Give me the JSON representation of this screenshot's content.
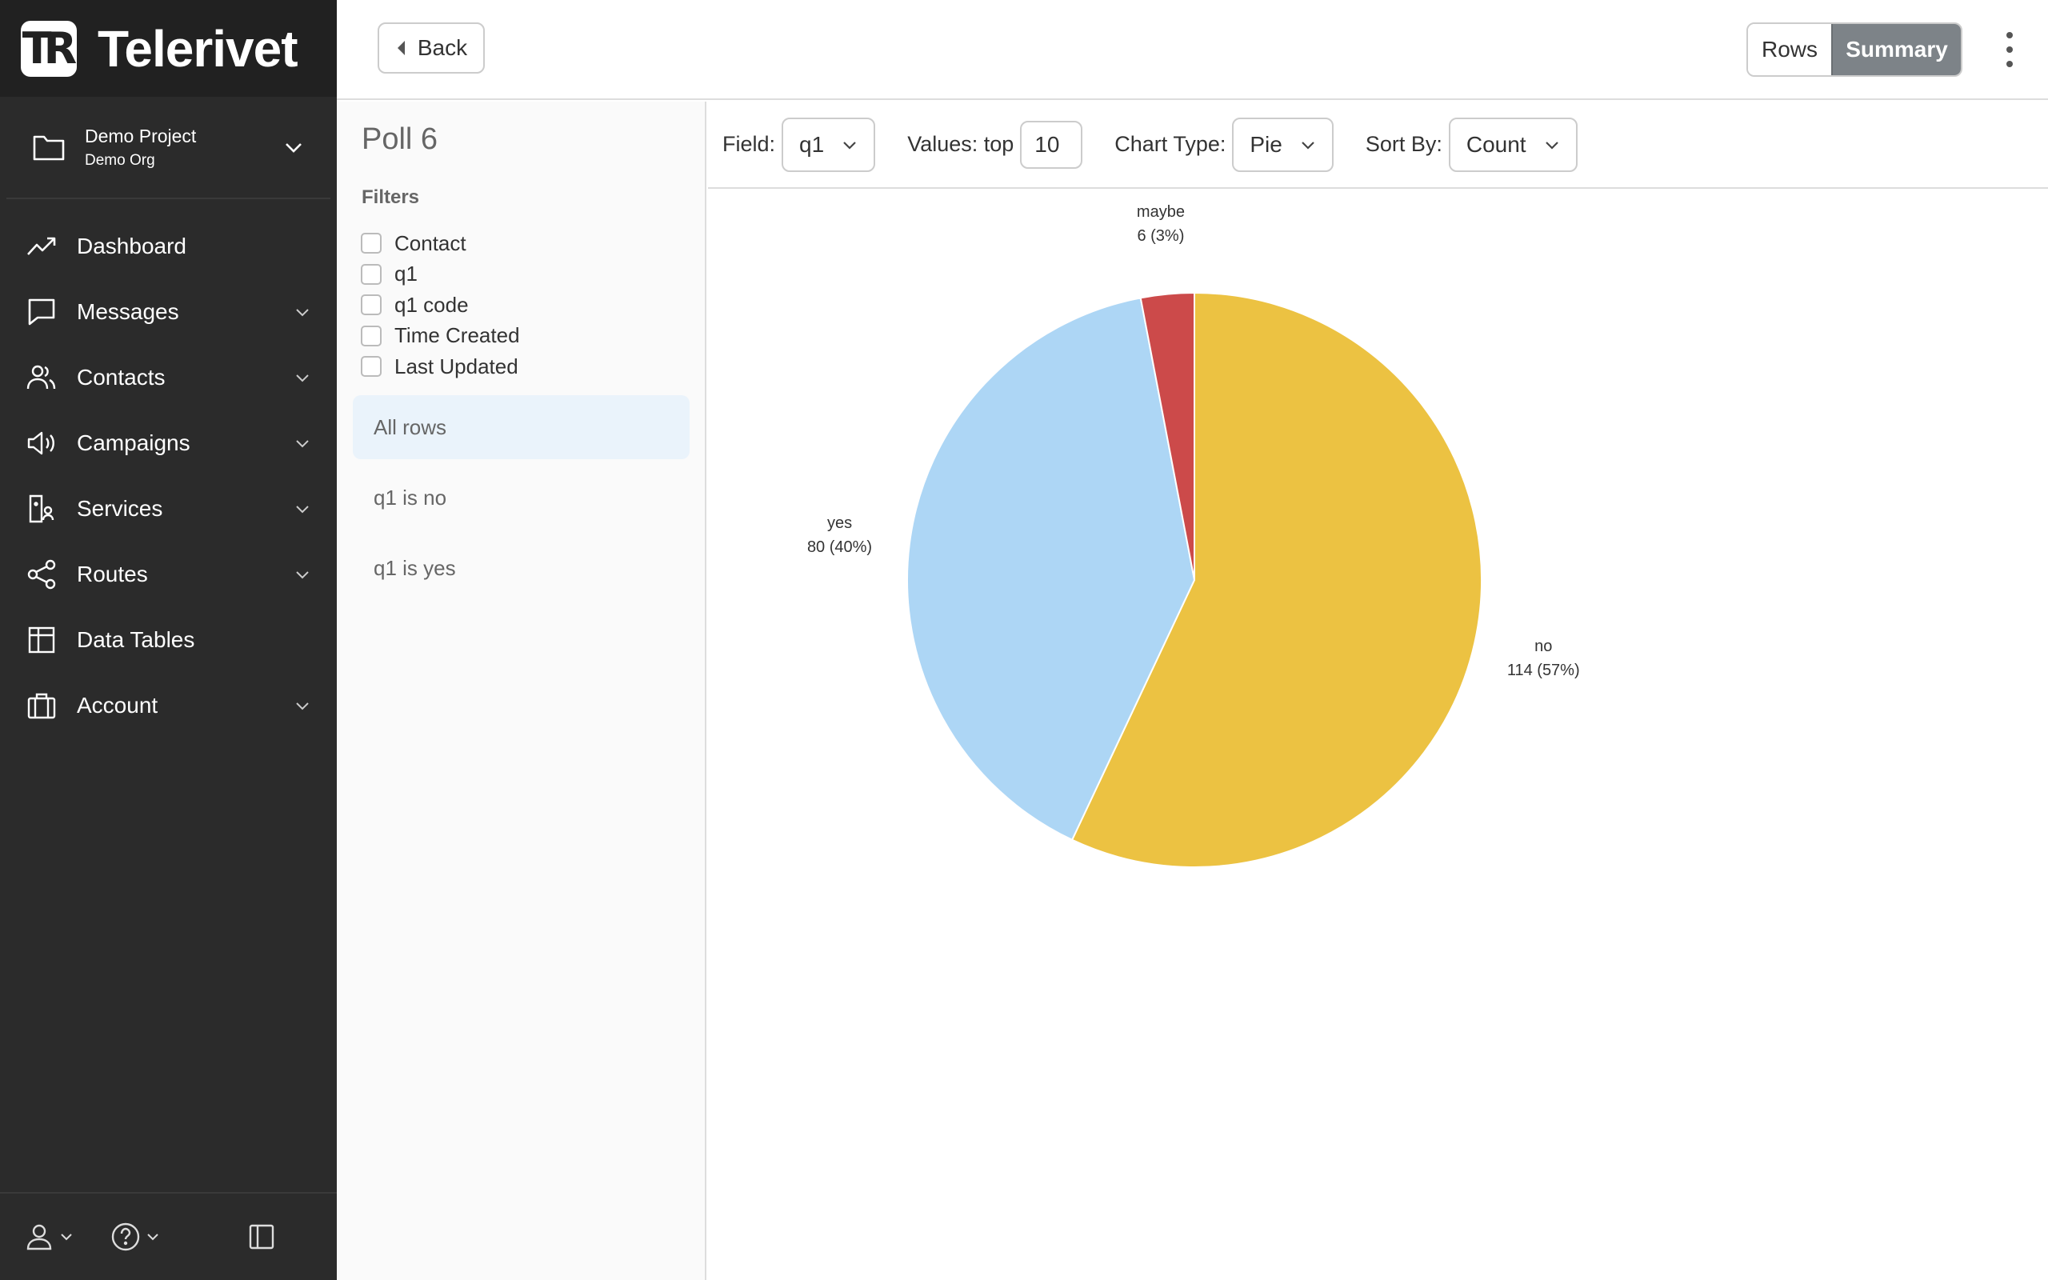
{
  "brand": {
    "name": "Telerivet",
    "logo_mark": "TR"
  },
  "project": {
    "name": "Demo Project",
    "org": "Demo Org"
  },
  "nav": [
    {
      "label": "Dashboard",
      "icon": "trending-up-icon",
      "expandable": false
    },
    {
      "label": "Messages",
      "icon": "message-icon",
      "expandable": true
    },
    {
      "label": "Contacts",
      "icon": "users-icon",
      "expandable": true
    },
    {
      "label": "Campaigns",
      "icon": "megaphone-icon",
      "expandable": true
    },
    {
      "label": "Services",
      "icon": "services-icon",
      "expandable": true
    },
    {
      "label": "Routes",
      "icon": "share-icon",
      "expandable": true
    },
    {
      "label": "Data Tables",
      "icon": "table-icon",
      "expandable": false
    },
    {
      "label": "Account",
      "icon": "briefcase-icon",
      "expandable": true
    }
  ],
  "topbar": {
    "back_label": "Back",
    "rows_label": "Rows",
    "summary_label": "Summary"
  },
  "panel": {
    "title": "Poll 6",
    "filters_heading": "Filters",
    "filter_fields": [
      "Contact",
      "q1",
      "q1 code",
      "Time Created",
      "Last Updated"
    ],
    "saved_filters": [
      "All rows",
      "q1 is no",
      "q1 is yes"
    ],
    "active_filter": "All rows"
  },
  "toolbar": {
    "field_label": "Field:",
    "field_value": "q1",
    "values_label": "Values: top",
    "values_value": "10",
    "chart_type_label": "Chart Type:",
    "chart_type_value": "Pie",
    "sort_label": "Sort By:",
    "sort_value": "Count"
  },
  "chart_data": {
    "type": "pie",
    "slices": [
      {
        "label": "no",
        "value": 114,
        "text": "114 (57%)",
        "color": "#ecc242"
      },
      {
        "label": "yes",
        "value": 80,
        "text": "80 (40%)",
        "color": "#add6f5"
      },
      {
        "label": "maybe",
        "value": 6,
        "text": "6 (3%)",
        "color": "#cc4a4a"
      }
    ]
  }
}
